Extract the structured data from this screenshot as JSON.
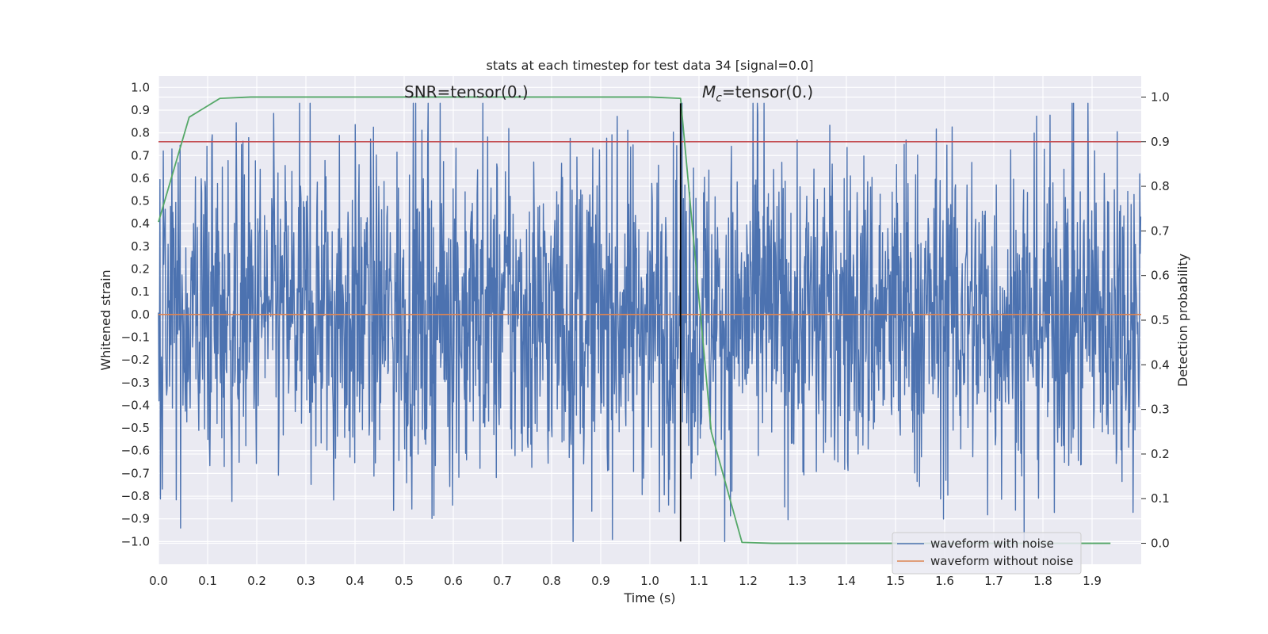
{
  "chart_data": {
    "type": "line",
    "title": "stats at each timestep for test data 34 [signal=0.0]",
    "xlabel": "Time (s)",
    "ylabel_left": "Whitened strain",
    "ylabel_right": "Detection probability",
    "xlim": [
      0.0,
      2.0
    ],
    "ylim_left": [
      -1.1,
      1.05
    ],
    "ylim_right": [
      -0.047,
      1.047
    ],
    "x_ticks": [
      "0.0",
      "0.1",
      "0.2",
      "0.3",
      "0.4",
      "0.5",
      "0.6",
      "0.7",
      "0.8",
      "0.9",
      "1.0",
      "1.1",
      "1.2",
      "1.3",
      "1.4",
      "1.5",
      "1.6",
      "1.7",
      "1.8",
      "1.9"
    ],
    "y_left_ticks": [
      "1.0",
      "0.9",
      "0.8",
      "0.7",
      "0.6",
      "0.5",
      "0.4",
      "0.3",
      "0.2",
      "0.1",
      "0.0",
      "−0.1",
      "−0.2",
      "−0.3",
      "−0.4",
      "−0.5",
      "−0.6",
      "−0.7",
      "−0.8",
      "−0.9",
      "−1.0"
    ],
    "y_right_ticks": [
      "1.0",
      "0.9",
      "0.8",
      "0.7",
      "0.6",
      "0.5",
      "0.4",
      "0.3",
      "0.2",
      "0.1",
      "0.0"
    ],
    "grid": true,
    "annotations": {
      "snr_prefix": "SNR=tensor(0.)",
      "mc_symbol": "M",
      "mc_subscript": "c",
      "mc_suffix": "=tensor(0.)"
    },
    "noise_series": {
      "name": "waveform with noise",
      "color": "#4c72b0",
      "amplitude_range": [
        -1.0,
        0.93
      ],
      "samples": 2048
    },
    "clean_series": {
      "name": "waveform without noise",
      "color": "#dd8452",
      "value": 0.0
    },
    "probability_series": {
      "color": "#55a868",
      "x": [
        0.0,
        0.0625,
        0.125,
        0.1875,
        0.25,
        0.3125,
        0.375,
        0.4375,
        0.5,
        0.5625,
        0.625,
        0.6875,
        0.75,
        0.8125,
        0.875,
        0.9375,
        1.0,
        1.0625,
        1.125,
        1.1875,
        1.25,
        1.3125,
        1.375,
        1.4375,
        1.5,
        1.5625,
        1.625,
        1.6875,
        1.75,
        1.8125,
        1.875,
        1.9375
      ],
      "y": [
        0.72,
        0.955,
        0.997,
        1.0,
        1.0,
        1.0,
        1.0,
        1.0,
        1.0,
        1.0,
        1.0,
        1.0,
        1.0,
        1.0,
        1.0,
        1.0,
        1.0,
        0.997,
        0.25,
        0.002,
        0.0,
        0.0,
        0.0,
        0.0,
        0.0,
        0.0,
        0.0,
        0.0,
        0.0,
        0.0,
        0.0,
        0.0
      ]
    },
    "threshold": {
      "value": 0.9,
      "color": "#c44e52"
    },
    "event_marker": {
      "x": 1.0625,
      "y_bottom": -1.0,
      "y_top": 0.93,
      "color": "#000000"
    },
    "legend": {
      "placement": "lower-right",
      "entries": [
        "waveform with noise",
        "waveform without noise"
      ]
    }
  }
}
